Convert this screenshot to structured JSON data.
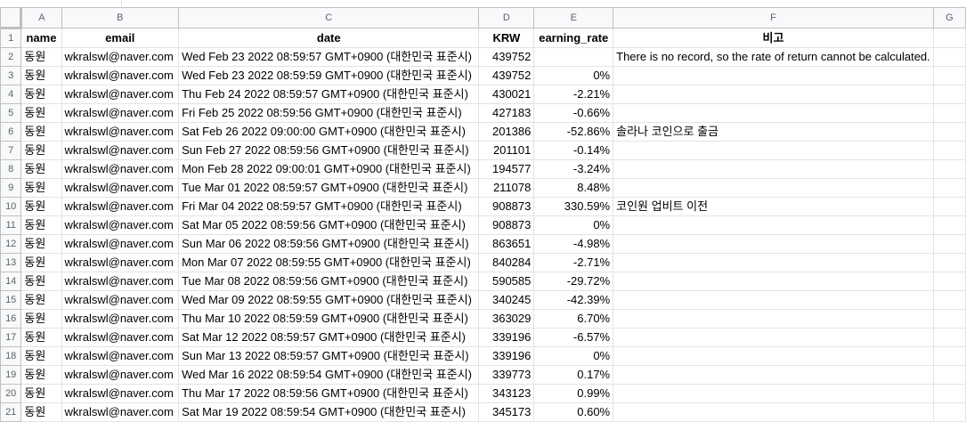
{
  "columns": [
    "A",
    "B",
    "C",
    "D",
    "E",
    "F",
    "G"
  ],
  "header_row": {
    "row": "1",
    "cells": [
      "name",
      "email",
      "date",
      "KRW",
      "earning_rate",
      "비고",
      ""
    ]
  },
  "rows": [
    {
      "row": "2",
      "name": "동원",
      "email": "wkralswl@naver.com",
      "date": "Wed Feb 23 2022 08:59:57 GMT+0900 (대한민국 표준시)",
      "krw": "439752",
      "rate": "",
      "note": "There is no record, so the rate of return cannot be calculated."
    },
    {
      "row": "3",
      "name": "동원",
      "email": "wkralswl@naver.com",
      "date": "Wed Feb 23 2022 08:59:59 GMT+0900 (대한민국 표준시)",
      "krw": "439752",
      "rate": "0%",
      "note": ""
    },
    {
      "row": "4",
      "name": "동원",
      "email": "wkralswl@naver.com",
      "date": "Thu Feb 24 2022 08:59:57 GMT+0900 (대한민국 표준시)",
      "krw": "430021",
      "rate": "-2.21%",
      "note": ""
    },
    {
      "row": "5",
      "name": "동원",
      "email": "wkralswl@naver.com",
      "date": "Fri Feb 25 2022 08:59:56 GMT+0900 (대한민국 표준시)",
      "krw": "427183",
      "rate": "-0.66%",
      "note": ""
    },
    {
      "row": "6",
      "name": "동원",
      "email": "wkralswl@naver.com",
      "date": "Sat Feb 26 2022 09:00:00 GMT+0900 (대한민국 표준시)",
      "krw": "201386",
      "rate": "-52.86%",
      "note": "솔라나 코인으로 출금"
    },
    {
      "row": "7",
      "name": "동원",
      "email": "wkralswl@naver.com",
      "date": "Sun Feb 27 2022 08:59:56 GMT+0900 (대한민국 표준시)",
      "krw": "201101",
      "rate": "-0.14%",
      "note": ""
    },
    {
      "row": "8",
      "name": "동원",
      "email": "wkralswl@naver.com",
      "date": "Mon Feb 28 2022 09:00:01 GMT+0900 (대한민국 표준시)",
      "krw": "194577",
      "rate": "-3.24%",
      "note": ""
    },
    {
      "row": "9",
      "name": "동원",
      "email": "wkralswl@naver.com",
      "date": "Tue Mar 01 2022 08:59:57 GMT+0900 (대한민국 표준시)",
      "krw": "211078",
      "rate": "8.48%",
      "note": ""
    },
    {
      "row": "10",
      "name": "동원",
      "email": "wkralswl@naver.com",
      "date": "Fri Mar 04 2022 08:59:57 GMT+0900 (대한민국 표준시)",
      "krw": "908873",
      "rate": "330.59%",
      "note": "코인원 업비트 이전"
    },
    {
      "row": "11",
      "name": "동원",
      "email": "wkralswl@naver.com",
      "date": "Sat Mar 05 2022 08:59:56 GMT+0900 (대한민국 표준시)",
      "krw": "908873",
      "rate": "0%",
      "note": ""
    },
    {
      "row": "12",
      "name": "동원",
      "email": "wkralswl@naver.com",
      "date": "Sun Mar 06 2022 08:59:56 GMT+0900 (대한민국 표준시)",
      "krw": "863651",
      "rate": "-4.98%",
      "note": ""
    },
    {
      "row": "13",
      "name": "동원",
      "email": "wkralswl@naver.com",
      "date": "Mon Mar 07 2022 08:59:55 GMT+0900 (대한민국 표준시)",
      "krw": "840284",
      "rate": "-2.71%",
      "note": ""
    },
    {
      "row": "14",
      "name": "동원",
      "email": "wkralswl@naver.com",
      "date": "Tue Mar 08 2022 08:59:56 GMT+0900 (대한민국 표준시)",
      "krw": "590585",
      "rate": "-29.72%",
      "note": ""
    },
    {
      "row": "15",
      "name": "동원",
      "email": "wkralswl@naver.com",
      "date": "Wed Mar 09 2022 08:59:55 GMT+0900 (대한민국 표준시)",
      "krw": "340245",
      "rate": "-42.39%",
      "note": ""
    },
    {
      "row": "16",
      "name": "동원",
      "email": "wkralswl@naver.com",
      "date": "Thu Mar 10 2022 08:59:59 GMT+0900 (대한민국 표준시)",
      "krw": "363029",
      "rate": "6.70%",
      "note": ""
    },
    {
      "row": "17",
      "name": "동원",
      "email": "wkralswl@naver.com",
      "date": "Sat Mar 12 2022 08:59:57 GMT+0900 (대한민국 표준시)",
      "krw": "339196",
      "rate": "-6.57%",
      "note": ""
    },
    {
      "row": "18",
      "name": "동원",
      "email": "wkralswl@naver.com",
      "date": "Sun Mar 13 2022 08:59:57 GMT+0900 (대한민국 표준시)",
      "krw": "339196",
      "rate": "0%",
      "note": ""
    },
    {
      "row": "19",
      "name": "동원",
      "email": "wkralswl@naver.com",
      "date": "Wed Mar 16 2022 08:59:54 GMT+0900 (대한민국 표준시)",
      "krw": "339773",
      "rate": "0.17%",
      "note": ""
    },
    {
      "row": "20",
      "name": "동원",
      "email": "wkralswl@naver.com",
      "date": "Thu Mar 17 2022 08:59:56 GMT+0900 (대한민국 표준시)",
      "krw": "343123",
      "rate": "0.99%",
      "note": ""
    },
    {
      "row": "21",
      "name": "동원",
      "email": "wkralswl@naver.com",
      "date": "Sat Mar 19 2022 08:59:54 GMT+0900 (대한민국 표준시)",
      "krw": "345173",
      "rate": "0.60%",
      "note": ""
    }
  ]
}
